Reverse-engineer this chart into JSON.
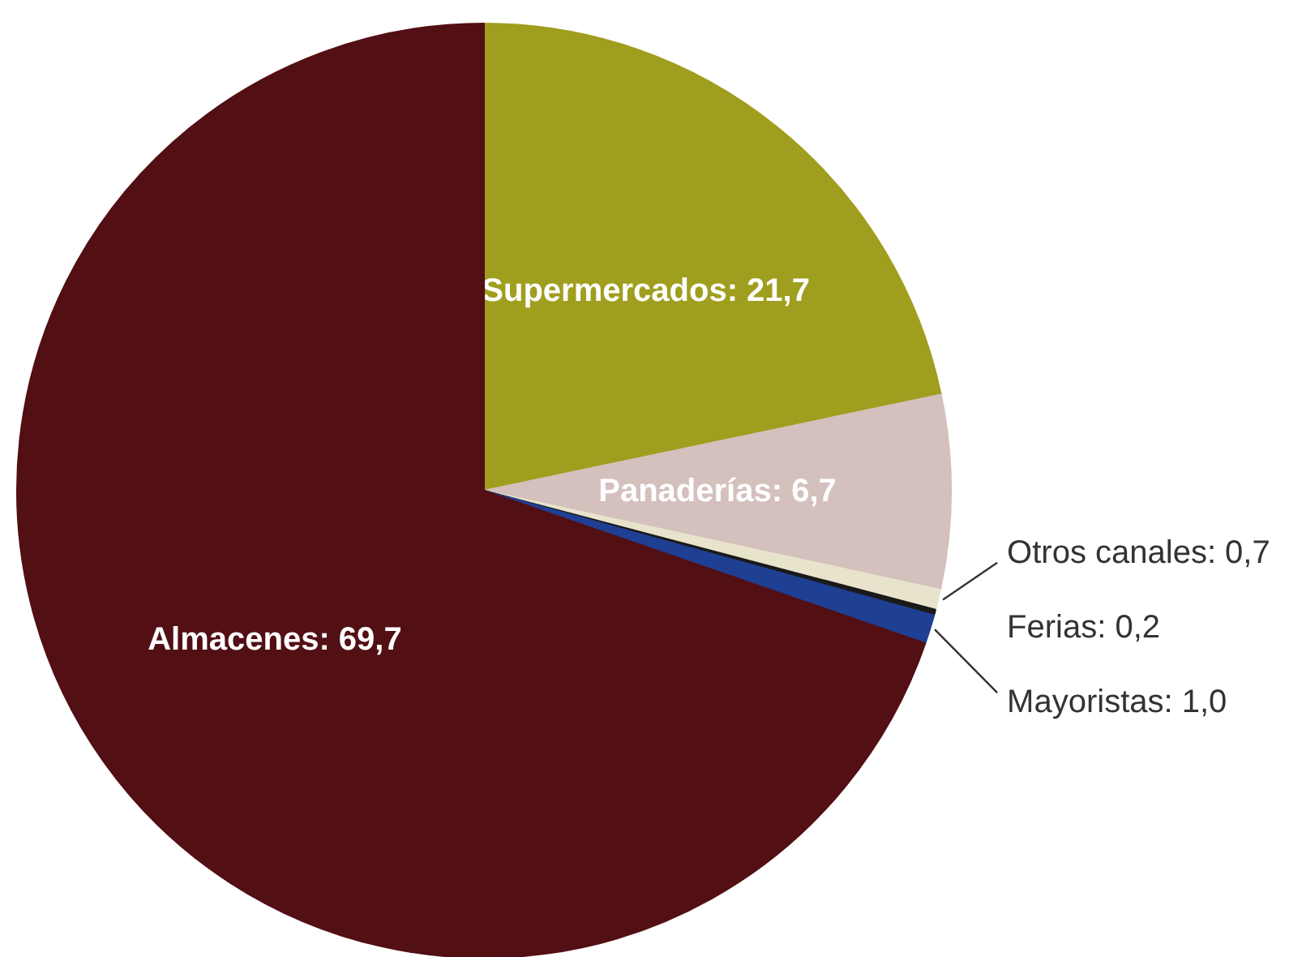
{
  "chart_data": {
    "type": "pie",
    "categories": [
      "Supermercados",
      "Panaderías",
      "Otros canales",
      "Ferias",
      "Mayoristas",
      "Almacenes"
    ],
    "values": [
      21.7,
      6.7,
      0.7,
      0.2,
      1.0,
      69.7
    ],
    "value_labels": [
      "21,7",
      "6,7",
      "0,7",
      "0,2",
      "1,0",
      "69,7"
    ],
    "colors": [
      "#a09e1e",
      "#d4c0bc",
      "#e8e4cc",
      "#1a1a1a",
      "#1f3f93",
      "#520f14"
    ]
  }
}
